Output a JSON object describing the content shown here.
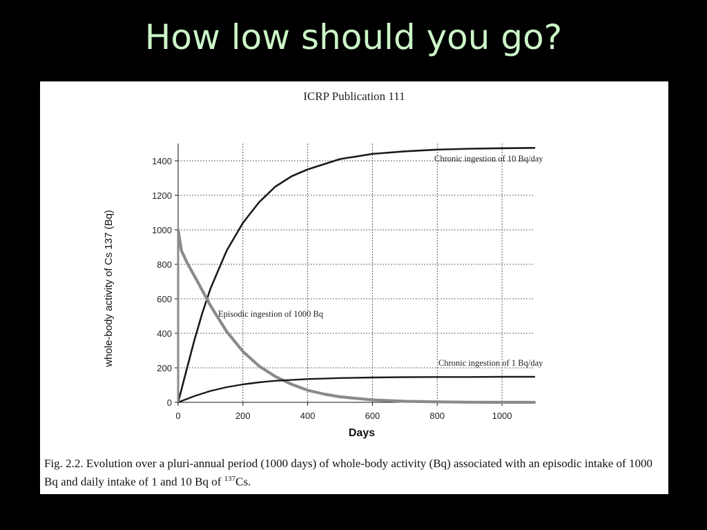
{
  "slide": {
    "title": "How low should you go?"
  },
  "figure": {
    "publication": "ICRP Publication 111",
    "caption": {
      "part1": "Fig. 2.2.  Evolution over a pluri-annual period (1000 days) of whole-body activity (Bq) associated with an episodic intake of 1000 Bq and daily intake of 1 and 10 Bq of ",
      "isotope_mass": "137",
      "isotope_symbol": "Cs."
    }
  },
  "chart_data": {
    "type": "line",
    "xlabel": "Days",
    "ylabel": "whole-body activity of Cs 137 (Bq)",
    "xlim": [
      0,
      1100
    ],
    "ylim": [
      0,
      1500
    ],
    "x_ticks": [
      0,
      200,
      400,
      600,
      800,
      1000
    ],
    "y_ticks": [
      0,
      200,
      400,
      600,
      800,
      1000,
      1200,
      1400
    ],
    "grid": true,
    "series": [
      {
        "name": "Chronic ingestion of 10 Bq/day",
        "color": "#1a1a1a",
        "x": [
          0,
          25,
          50,
          75,
          100,
          150,
          200,
          250,
          300,
          350,
          400,
          500,
          600,
          700,
          800,
          900,
          1000,
          1100
        ],
        "values": [
          0,
          180,
          360,
          520,
          660,
          880,
          1040,
          1160,
          1250,
          1310,
          1350,
          1410,
          1440,
          1455,
          1465,
          1470,
          1473,
          1475
        ]
      },
      {
        "name": "Episodic ingestion of 1000 Bq",
        "color": "#8a8a8a",
        "x": [
          0,
          10,
          30,
          60,
          100,
          150,
          200,
          250,
          300,
          350,
          400,
          450,
          500,
          600,
          700,
          800,
          900,
          1000,
          1100
        ],
        "values": [
          1000,
          880,
          800,
          700,
          560,
          410,
          295,
          210,
          150,
          105,
          70,
          48,
          32,
          14,
          6,
          3,
          1,
          0,
          0
        ]
      },
      {
        "name": "Chronic ingestion of 1 Bq/day",
        "color": "#1a1a1a",
        "x": [
          0,
          25,
          50,
          100,
          150,
          200,
          250,
          300,
          400,
          500,
          600,
          700,
          800,
          900,
          1000,
          1100
        ],
        "values": [
          0,
          18,
          36,
          66,
          88,
          104,
          116,
          125,
          135,
          141,
          144,
          146,
          147,
          147,
          148,
          148
        ]
      }
    ]
  }
}
